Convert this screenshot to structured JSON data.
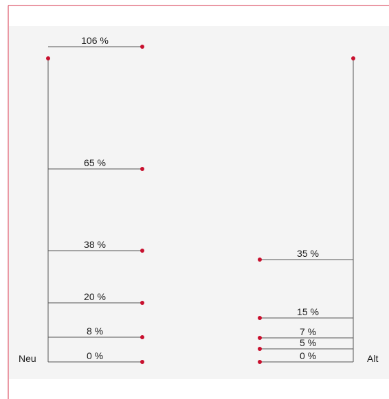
{
  "diagram": {
    "colors": {
      "frame_border": "#d4304a",
      "panel_background": "#f4f4f4",
      "line": "#555555",
      "dot": "#c8102e"
    },
    "groups": [
      {
        "name": "Neu",
        "levels": [
          {
            "label": "106 %",
            "value": 106
          },
          {
            "label": "65 %",
            "value": 65
          },
          {
            "label": "38 %",
            "value": 38
          },
          {
            "label": "20 %",
            "value": 20
          },
          {
            "label": "8 %",
            "value": 8
          },
          {
            "label": "0 %",
            "value": 0
          }
        ]
      },
      {
        "name": "Alt",
        "levels": [
          {
            "label": "35 %",
            "value": 35
          },
          {
            "label": "15 %",
            "value": 15
          },
          {
            "label": "7 %",
            "value": 7
          },
          {
            "label": "5 %",
            "value": 5
          },
          {
            "label": "0 %",
            "value": 0
          }
        ]
      }
    ]
  }
}
